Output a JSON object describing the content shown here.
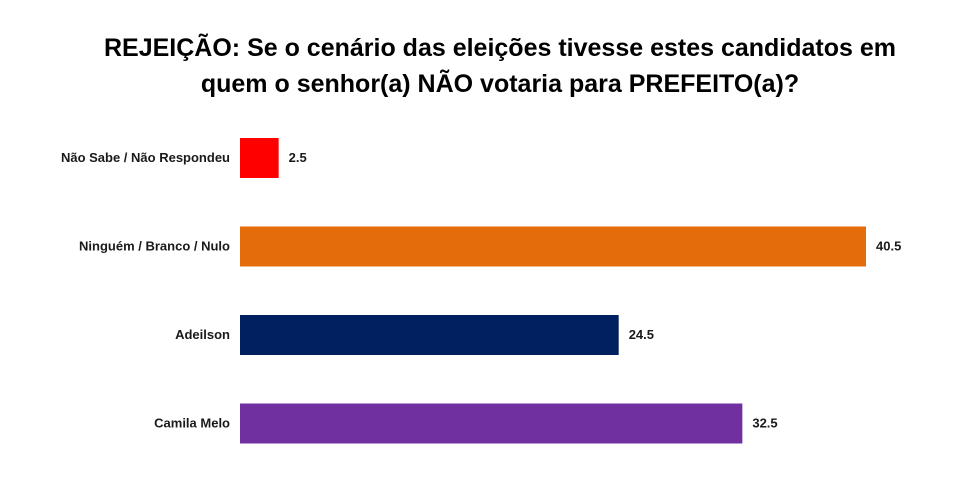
{
  "chart_data": {
    "type": "bar",
    "orientation": "horizontal",
    "title": "REJEIÇÃO: Se o cenário das eleições tivesse estes candidatos em\nquem o senhor(a) NÃO votaria para PREFEITO(a)?",
    "categories": [
      "Não Sabe / Não Respondeu",
      "Ninguém / Branco / Nulo",
      "Adeilson",
      "Camila Melo"
    ],
    "values": [
      2.5,
      40.5,
      24.5,
      32.5
    ],
    "value_labels": [
      "2.5",
      "40.5",
      "24.5",
      "32.5"
    ],
    "colors": [
      "#ff0000",
      "#e46c0a",
      "#002060",
      "#7030a0"
    ],
    "xlim": [
      0,
      40.5
    ],
    "grid": false,
    "legend": "none"
  }
}
